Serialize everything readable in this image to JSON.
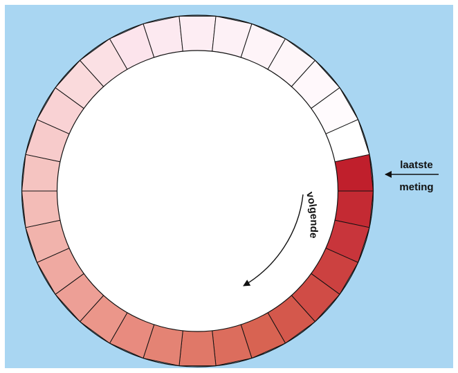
{
  "diagram": {
    "background": "#a9d6f2",
    "frame_color": "#ffffff",
    "inner_color": "#ffffff",
    "outline_color": "#111111",
    "segment_count": 30,
    "segment_colors": [
      "#c01f2c",
      "#c42a33",
      "#c8353b",
      "#cc4140",
      "#d04c46",
      "#d4584c",
      "#d86352",
      "#dc6d5d",
      "#e07868",
      "#e48374",
      "#e88b7f",
      "#eb968a",
      "#ed9f96",
      "#efa9a1",
      "#f1b3ac",
      "#f3bcb7",
      "#f5c4c1",
      "#f7cbcb",
      "#f9d2d4",
      "#fadadc",
      "#fbe0e4",
      "#fce4ec",
      "#fce9f0",
      "#fdedf3",
      "#fdf1f6",
      "#fef4f8",
      "#fef6f9",
      "#fff8fb",
      "#fffbfd",
      "#ffffff"
    ],
    "marker_color": "#111111",
    "labels": {
      "latest_line1": "laatste",
      "latest_line2": "meting",
      "direction": "volgende"
    }
  }
}
